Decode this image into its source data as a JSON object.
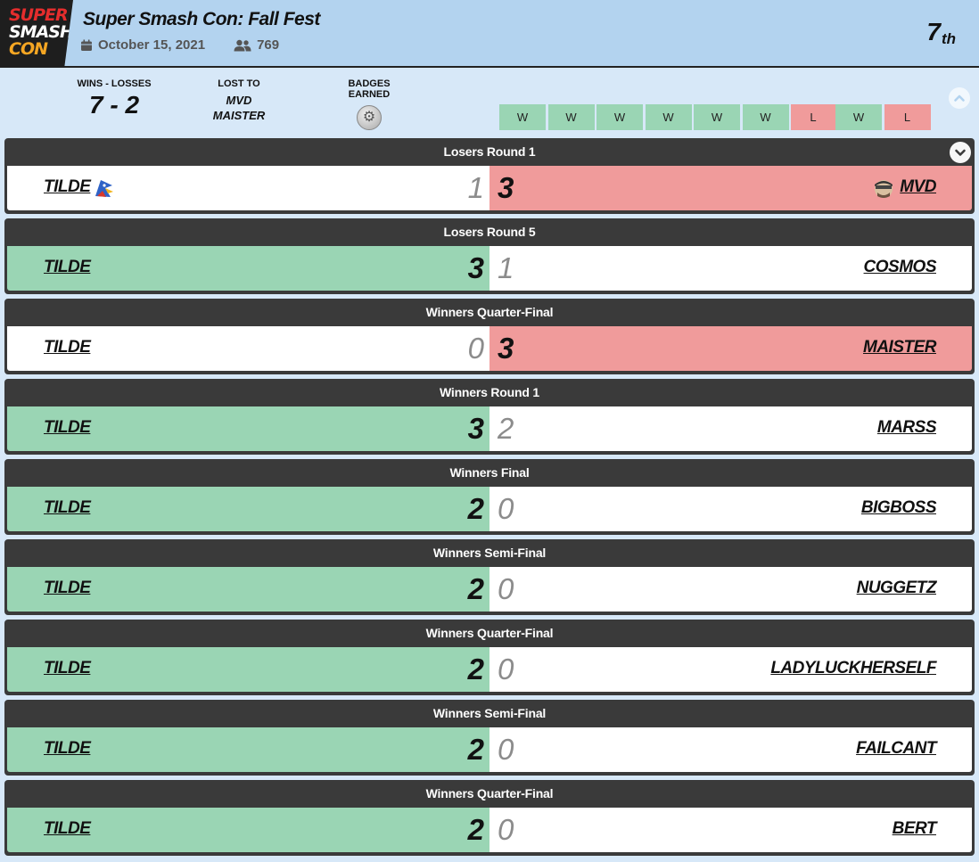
{
  "logo": {
    "line1": "SUPER",
    "line2": "SMASH",
    "line3": "CON"
  },
  "event": {
    "title": "Super Smash Con: Fall Fest",
    "date": "October 15, 2021",
    "entrants": "769",
    "placement": "7",
    "placement_suffix": "th"
  },
  "summary": {
    "wins_losses_label": "WINS - LOSSES",
    "wins_losses_value": "7 - 2",
    "lost_to_label": "LOST TO",
    "lost_to": [
      "MVD",
      "MAISTER"
    ],
    "badges_label": "BADGES EARNED"
  },
  "results_strip": [
    "W",
    "W",
    "W",
    "W",
    "W",
    "W",
    "L",
    "W",
    "L"
  ],
  "colors": {
    "win": "#9ad5b4",
    "loss": "#f09b9b",
    "header_bg": "#b3d3ef",
    "page_bg": "#d7e8f8",
    "round_bar": "#3a3a3a"
  },
  "matches": [
    {
      "round": "Losers Round 1",
      "left": {
        "name": "TILDE",
        "score": "1",
        "state": "neutral",
        "character": "falco-icon"
      },
      "right": {
        "name": "MVD",
        "score": "3",
        "state": "lose",
        "character": "snake-icon"
      }
    },
    {
      "round": "Losers Round 5",
      "left": {
        "name": "TILDE",
        "score": "3",
        "state": "win"
      },
      "right": {
        "name": "COSMOS",
        "score": "1",
        "state": "neutral"
      }
    },
    {
      "round": "Winners Quarter-Final",
      "left": {
        "name": "TILDE",
        "score": "0",
        "state": "neutral"
      },
      "right": {
        "name": "MAISTER",
        "score": "3",
        "state": "lose"
      }
    },
    {
      "round": "Winners Round 1",
      "left": {
        "name": "TILDE",
        "score": "3",
        "state": "win"
      },
      "right": {
        "name": "MARSS",
        "score": "2",
        "state": "neutral"
      }
    },
    {
      "round": "Winners Final",
      "left": {
        "name": "TILDE",
        "score": "2",
        "state": "win"
      },
      "right": {
        "name": "BIGBOSS",
        "score": "0",
        "state": "neutral"
      }
    },
    {
      "round": "Winners Semi-Final",
      "left": {
        "name": "TILDE",
        "score": "2",
        "state": "win"
      },
      "right": {
        "name": "NUGGETZ",
        "score": "0",
        "state": "neutral"
      }
    },
    {
      "round": "Winners Quarter-Final",
      "left": {
        "name": "TILDE",
        "score": "2",
        "state": "win"
      },
      "right": {
        "name": "LADYLUCKHERSELF",
        "score": "0",
        "state": "neutral"
      }
    },
    {
      "round": "Winners Semi-Final",
      "left": {
        "name": "TILDE",
        "score": "2",
        "state": "win"
      },
      "right": {
        "name": "FAILCANT",
        "score": "0",
        "state": "neutral"
      }
    },
    {
      "round": "Winners Quarter-Final",
      "left": {
        "name": "TILDE",
        "score": "2",
        "state": "win"
      },
      "right": {
        "name": "BERT",
        "score": "0",
        "state": "neutral"
      }
    }
  ]
}
